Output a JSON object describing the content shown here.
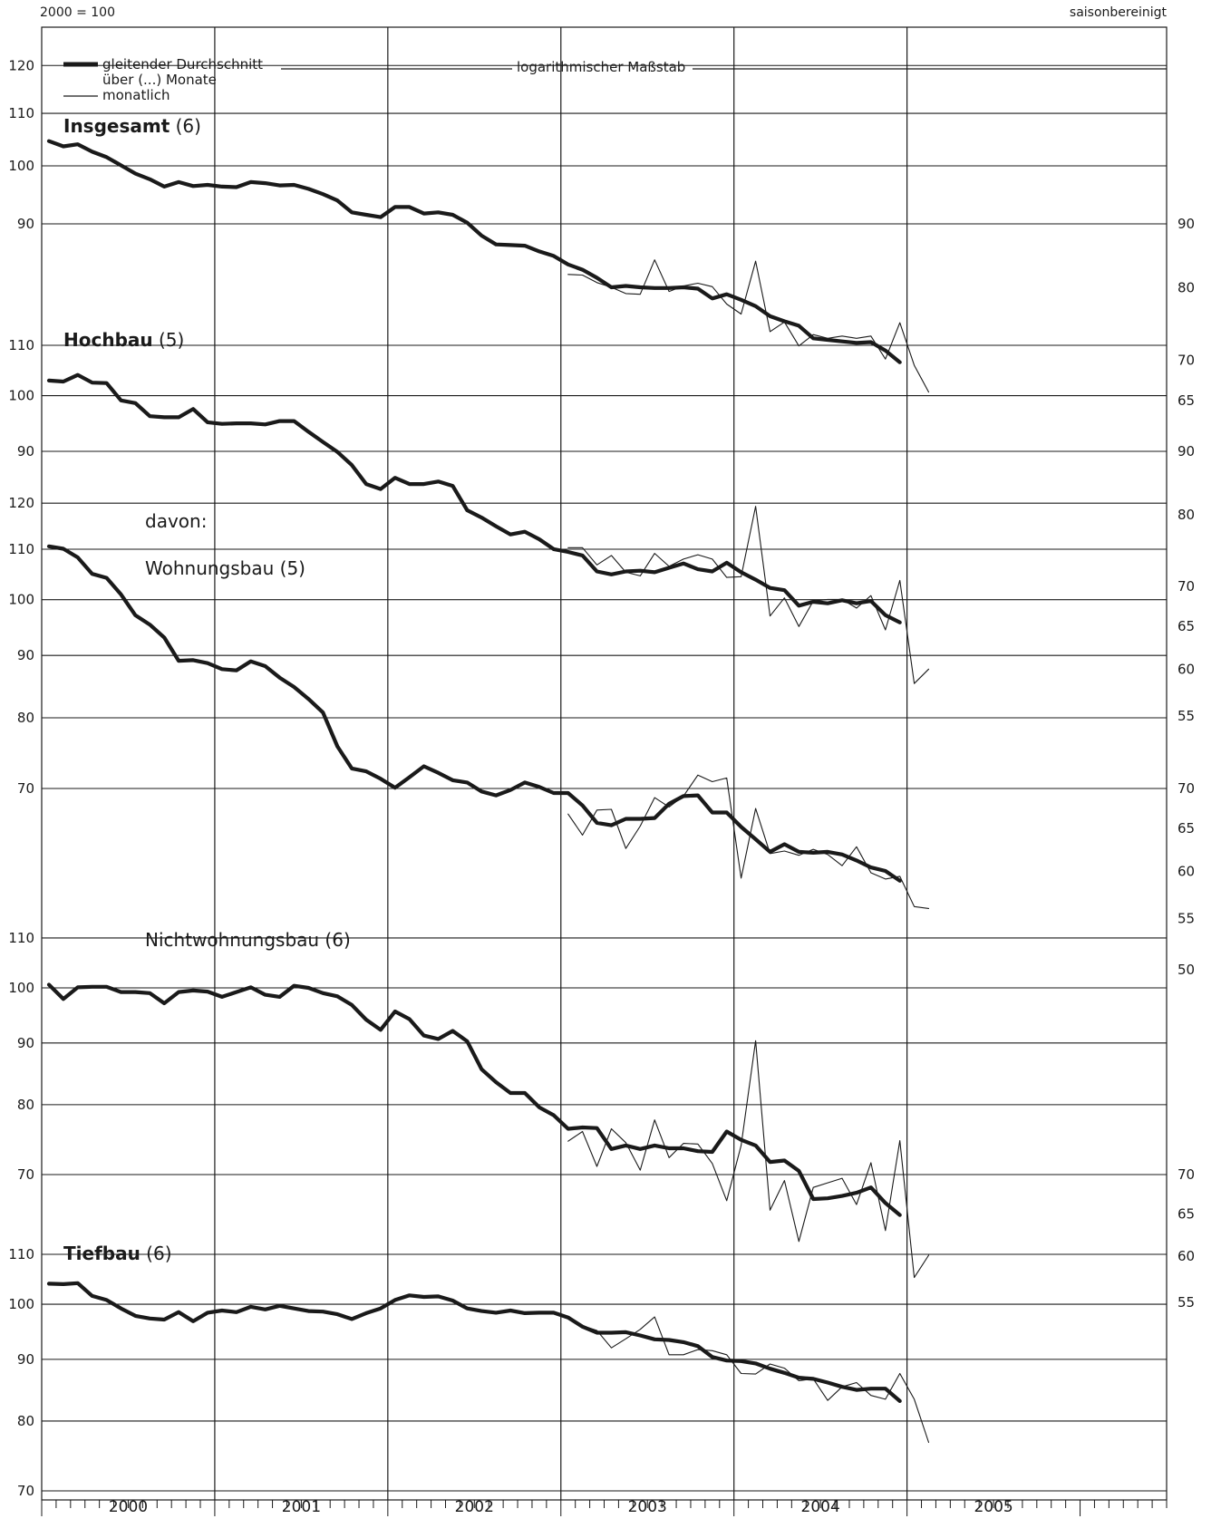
{
  "header": {
    "base_label": "2000 = 100",
    "adjust_label": "saisonbereinigt"
  },
  "legend": {
    "moving_avg_line1": "gleitender Durchschnitt",
    "moving_avg_line2": "über (...) Monate",
    "monthly": "monatlich",
    "scale_note": "logarithmischer Maßstab"
  },
  "davon_label": "davon:",
  "years": [
    "2000",
    "2001",
    "2002",
    "2003",
    "2004",
    "2005"
  ],
  "chart_data": [
    {
      "type": "line",
      "name": "Insgesamt",
      "window": "(6)",
      "ylim": [
        78,
        122
      ],
      "left_ticks": [
        120,
        110,
        100,
        90
      ],
      "right_ticks": [
        90,
        80,
        70,
        65
      ],
      "series": [
        {
          "name": "gleitender Durchschnitt über (...) Monate",
          "values": [
            104.6,
            103.6,
            104.0,
            102.6,
            101.6,
            100.1,
            98.6,
            97.6,
            96.3,
            97.1,
            96.4,
            96.6,
            96.3,
            96.2,
            97.1,
            96.9,
            96.5,
            96.6,
            95.9,
            95.0,
            93.9,
            91.9,
            91.5,
            91.1,
            92.8,
            92.8,
            91.7,
            91.9,
            91.5,
            90.2,
            88.1,
            86.7,
            86.6,
            86.5,
            85.6,
            84.9,
            83.6,
            82.8,
            81.6,
            80.2,
            80.4,
            80.2,
            80.1,
            80.1,
            80.2,
            80.0,
            78.6,
            79.2,
            78.4,
            77.5,
            76.1,
            75.4,
            74.8,
            73.1,
            72.9,
            72.7,
            72.5,
            72.6,
            71.5,
            70.0
          ]
        },
        {
          "name": "monatlich",
          "start_index": 36,
          "values": [
            82.1,
            82.0,
            80.9,
            80.2,
            79.3,
            79.2,
            84.3,
            79.6,
            80.4,
            80.8,
            80.3,
            77.8,
            76.4,
            84.1,
            74.0,
            75.3,
            72.1,
            73.6,
            73.1,
            73.4,
            73.1,
            73.4,
            70.4,
            75.2,
            69.6,
            66.3
          ]
        }
      ]
    },
    {
      "type": "line",
      "name": "Hochbau",
      "window": "(5)",
      "ylim": [
        78,
        114
      ],
      "left_ticks": [
        110,
        100,
        90
      ],
      "right_ticks": [
        90,
        80,
        70,
        65,
        60,
        55
      ],
      "series": [
        {
          "name": "gleitender Durchschnitt über (...) Monate",
          "values": [
            102.9,
            102.7,
            104.0,
            102.5,
            102.4,
            99.1,
            98.6,
            96.2,
            96.0,
            96.0,
            97.5,
            95.1,
            94.8,
            94.9,
            94.9,
            94.7,
            95.3,
            95.3,
            93.4,
            91.6,
            89.9,
            87.7,
            84.6,
            83.8,
            85.6,
            84.6,
            84.6,
            85.0,
            84.3,
            80.5,
            79.4,
            78.1,
            76.9,
            77.3,
            76.2,
            74.8,
            74.4,
            73.9,
            71.7,
            71.3,
            71.7,
            71.8,
            71.6,
            72.2,
            72.8,
            72.0,
            71.7,
            72.9,
            71.6,
            70.6,
            69.5,
            69.2,
            67.2,
            67.7,
            67.5,
            67.9,
            67.5,
            67.8,
            66.0,
            65.1
          ]
        },
        {
          "name": "monatlich",
          "start_index": 36,
          "values": [
            75.0,
            75.0,
            72.6,
            73.9,
            71.6,
            71.1,
            74.2,
            72.4,
            73.4,
            74.0,
            73.4,
            70.9,
            71.0,
            81.1,
            65.9,
            68.2,
            64.6,
            67.8,
            68.0,
            68.0,
            66.9,
            68.5,
            64.2,
            70.5,
            58.0,
            59.6
          ]
        }
      ]
    },
    {
      "type": "line",
      "name": "Wohnungsbau",
      "window": "(5)",
      "ylim": [
        58,
        124
      ],
      "left_ticks": [
        120,
        110,
        100,
        90,
        80,
        70
      ],
      "right_ticks": [
        70,
        65,
        60,
        55,
        50
      ],
      "series": [
        {
          "name": "gleitender Durchschnitt über (...) Monate",
          "values": [
            110.6,
            110.1,
            108.3,
            105.0,
            104.2,
            101.0,
            97.1,
            95.4,
            93.1,
            89.1,
            89.2,
            88.7,
            87.7,
            87.5,
            89.0,
            88.2,
            86.3,
            84.8,
            82.9,
            80.8,
            75.8,
            72.7,
            72.3,
            71.3,
            70.1,
            71.5,
            73.0,
            72.1,
            71.1,
            70.8,
            69.6,
            69.1,
            69.8,
            70.8,
            70.2,
            69.4,
            69.4,
            67.8,
            65.6,
            65.3,
            66.1,
            66.1,
            66.2,
            68.0,
            69.0,
            69.1,
            66.9,
            66.9,
            65.1,
            63.6,
            62.1,
            63.0,
            62.1,
            62.0,
            62.1,
            61.8,
            61.1,
            60.3,
            59.9,
            58.8
          ]
        },
        {
          "name": "monatlich",
          "start_index": 36,
          "values": [
            66.7,
            64.1,
            67.2,
            67.3,
            62.5,
            65.2,
            68.8,
            67.6,
            69.0,
            71.8,
            70.9,
            71.4,
            59.1,
            67.4,
            61.9,
            62.2,
            61.7,
            62.4,
            61.8,
            60.5,
            62.7,
            59.7,
            59.0,
            59.3,
            56.0,
            55.8
          ]
        }
      ]
    },
    {
      "type": "line",
      "name": "Nichtwohnungsbau",
      "window": "(6)",
      "ylim": [
        66,
        114
      ],
      "left_ticks": [
        110,
        100,
        90,
        80,
        70
      ],
      "right_ticks": [
        70,
        65,
        60,
        55
      ],
      "series": [
        {
          "name": "gleitender Durchschnitt über (...) Monate",
          "values": [
            100.6,
            97.9,
            100.1,
            100.2,
            100.2,
            99.2,
            99.2,
            99.0,
            97.1,
            99.2,
            99.5,
            99.3,
            98.3,
            99.2,
            100.1,
            98.7,
            98.3,
            100.4,
            100.0,
            99.0,
            98.4,
            96.8,
            94.1,
            92.3,
            95.6,
            94.2,
            91.3,
            90.7,
            92.1,
            90.3,
            85.6,
            83.5,
            81.8,
            81.8,
            79.6,
            78.4,
            76.4,
            76.6,
            76.5,
            73.5,
            74.0,
            73.5,
            74.0,
            73.6,
            73.6,
            73.2,
            73.1,
            76.0,
            74.8,
            74.0,
            71.7,
            71.9,
            70.5,
            66.8,
            66.9,
            67.2,
            67.6,
            68.3,
            66.3,
            64.8
          ]
        },
        {
          "name": "monatlich",
          "start_index": 36,
          "values": [
            74.6,
            76.0,
            71.1,
            76.4,
            74.4,
            70.6,
            77.7,
            72.3,
            74.3,
            74.2,
            71.5,
            66.6,
            74.0,
            90.4,
            65.4,
            69.2,
            61.6,
            68.3,
            68.9,
            69.5,
            66.1,
            71.6,
            62.9,
            74.7,
            57.5,
            60.0
          ]
        }
      ]
    },
    {
      "type": "line",
      "name": "Tiefbau",
      "window": "(6)",
      "ylim": [
        66,
        114
      ],
      "left_ticks": [
        110,
        100,
        90,
        80,
        70
      ],
      "right_ticks": [],
      "series": [
        {
          "name": "gleitender Durchschnitt über (...) Monate",
          "values": [
            104.0,
            103.9,
            104.1,
            101.6,
            100.8,
            99.2,
            97.8,
            97.3,
            97.1,
            98.5,
            96.8,
            98.4,
            98.8,
            98.5,
            99.5,
            99.0,
            99.7,
            99.2,
            98.7,
            98.6,
            98.1,
            97.2,
            98.3,
            99.2,
            100.8,
            101.7,
            101.4,
            101.5,
            100.7,
            99.2,
            98.7,
            98.4,
            98.8,
            98.3,
            98.4,
            98.4,
            97.5,
            95.8,
            94.7,
            94.7,
            94.8,
            94.2,
            93.5,
            93.4,
            93.0,
            92.3,
            90.4,
            89.8,
            89.7,
            89.3,
            88.4,
            87.7,
            86.9,
            86.7,
            86.1,
            85.4,
            84.9,
            85.1,
            85.1,
            83.1
          ]
        },
        {
          "name": "monatlich",
          "start_index": 36,
          "values": [
            97.5,
            96.0,
            95.1,
            92.0,
            93.6,
            95.3,
            97.6,
            90.8,
            90.8,
            91.7,
            91.5,
            90.8,
            87.6,
            87.5,
            89.2,
            88.5,
            86.4,
            86.7,
            83.2,
            85.4,
            86.1,
            84.0,
            83.4,
            87.6,
            83.4,
            76.8
          ]
        }
      ]
    }
  ]
}
